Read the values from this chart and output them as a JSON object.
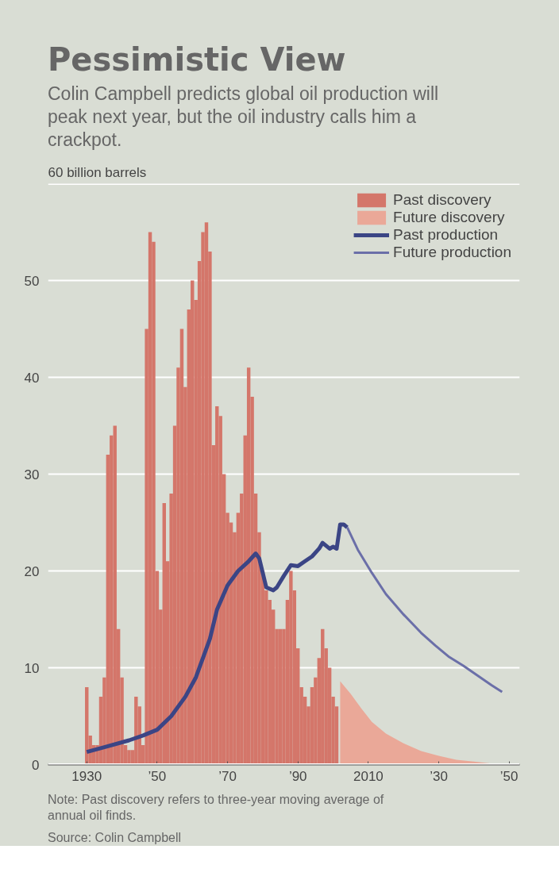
{
  "chart_data": {
    "type": "bar",
    "title": "Pessimistic View",
    "subtitle": "Colin Campbell predicts global oil production will peak next year, but the oil industry calls him a crackpot.",
    "ylabel": "60 billion barrels",
    "annotations": [
      "Note: Past discovery refers to three-year moving average of annual oil finds.",
      "Source: Colin Campbell"
    ],
    "xlim": [
      1919,
      2053
    ],
    "ylim": [
      0,
      60
    ],
    "xticks": [
      1930,
      {
        "value": 1950,
        "label": "’50"
      },
      {
        "value": 1970,
        "label": "’70"
      },
      {
        "value": 1990,
        "label": "’90"
      },
      2010,
      {
        "value": 2030,
        "label": "’30"
      },
      {
        "value": 2050,
        "label": "’50"
      }
    ],
    "yticks": [
      0,
      10,
      20,
      30,
      40,
      50,
      {
        "value": 60,
        "label": null
      }
    ],
    "grid": "y",
    "legend": "top right",
    "series": [
      {
        "name": "Past discovery",
        "color": "#d4766a",
        "x": [
          1930,
          1931,
          1932,
          1933,
          1934,
          1935,
          1936,
          1937,
          1938,
          1939,
          1940,
          1941,
          1942,
          1943,
          1944,
          1945,
          1946,
          1947,
          1948,
          1949,
          1950,
          1951,
          1952,
          1953,
          1954,
          1955,
          1956,
          1957,
          1958,
          1959,
          1960,
          1961,
          1962,
          1963,
          1964,
          1965,
          1966,
          1967,
          1968,
          1969,
          1970,
          1971,
          1972,
          1973,
          1974,
          1975,
          1976,
          1977,
          1978,
          1979,
          1980,
          1981,
          1982,
          1983,
          1984,
          1985,
          1986,
          1987,
          1988,
          1989,
          1990,
          1991,
          1992,
          1993,
          1994,
          1995,
          1996,
          1997,
          1998,
          1999,
          2000,
          2001
        ],
        "values": [
          8,
          3,
          2,
          2,
          7,
          9,
          32,
          34,
          35,
          14,
          9,
          2,
          1.5,
          1.5,
          7,
          6,
          2,
          45,
          55,
          54,
          20,
          16,
          27,
          21,
          28,
          35,
          41,
          45,
          39,
          47,
          50,
          48,
          52,
          55,
          56,
          53,
          33,
          37,
          36,
          30,
          26,
          25,
          24,
          26,
          28,
          34,
          41,
          38,
          28,
          24,
          20,
          18,
          17,
          16,
          14,
          14,
          14,
          17,
          20,
          18,
          12,
          8,
          7,
          6,
          8,
          9,
          11,
          14,
          12,
          10,
          7,
          6
        ]
      },
      {
        "name": "Future discovery",
        "type": "area",
        "color": "#eaa898",
        "x": [
          2002,
          2005,
          2008,
          2011,
          2015,
          2020,
          2025,
          2030,
          2035,
          2040,
          2045,
          2050
        ],
        "values": [
          8.6,
          7.3,
          5.8,
          4.4,
          3.2,
          2.2,
          1.4,
          0.9,
          0.5,
          0.3,
          0.1,
          0
        ]
      },
      {
        "name": "Past production",
        "type": "line",
        "color": "#3b4585",
        "x": [
          1930,
          1935,
          1942,
          1946,
          1950,
          1954,
          1958,
          1961,
          1963,
          1965,
          1967,
          1970,
          1973,
          1976,
          1978,
          1979,
          1981,
          1983,
          1984,
          1986,
          1988,
          1990,
          1992,
          1994,
          1996,
          1997,
          1999,
          2000,
          2001,
          2002,
          2003,
          2004
        ],
        "values": [
          1.3,
          1.8,
          2.5,
          3,
          3.6,
          5,
          7,
          9,
          11,
          13,
          16,
          18.5,
          20,
          21,
          21.8,
          21.3,
          18.3,
          18,
          18.3,
          19.5,
          20.6,
          20.5,
          21,
          21.5,
          22.3,
          22.9,
          22.3,
          22.5,
          22.3,
          24.8,
          24.8,
          24.5
        ]
      },
      {
        "name": "Future production",
        "type": "line",
        "color": "#6b6fa8",
        "x": [
          2004,
          2007,
          2011,
          2015,
          2020,
          2025,
          2029,
          2033,
          2037,
          2041,
          2045,
          2048
        ],
        "values": [
          24.5,
          22.2,
          19.8,
          17.6,
          15.5,
          13.6,
          12.3,
          11.1,
          10.2,
          9.2,
          8.2,
          7.5
        ]
      }
    ]
  }
}
